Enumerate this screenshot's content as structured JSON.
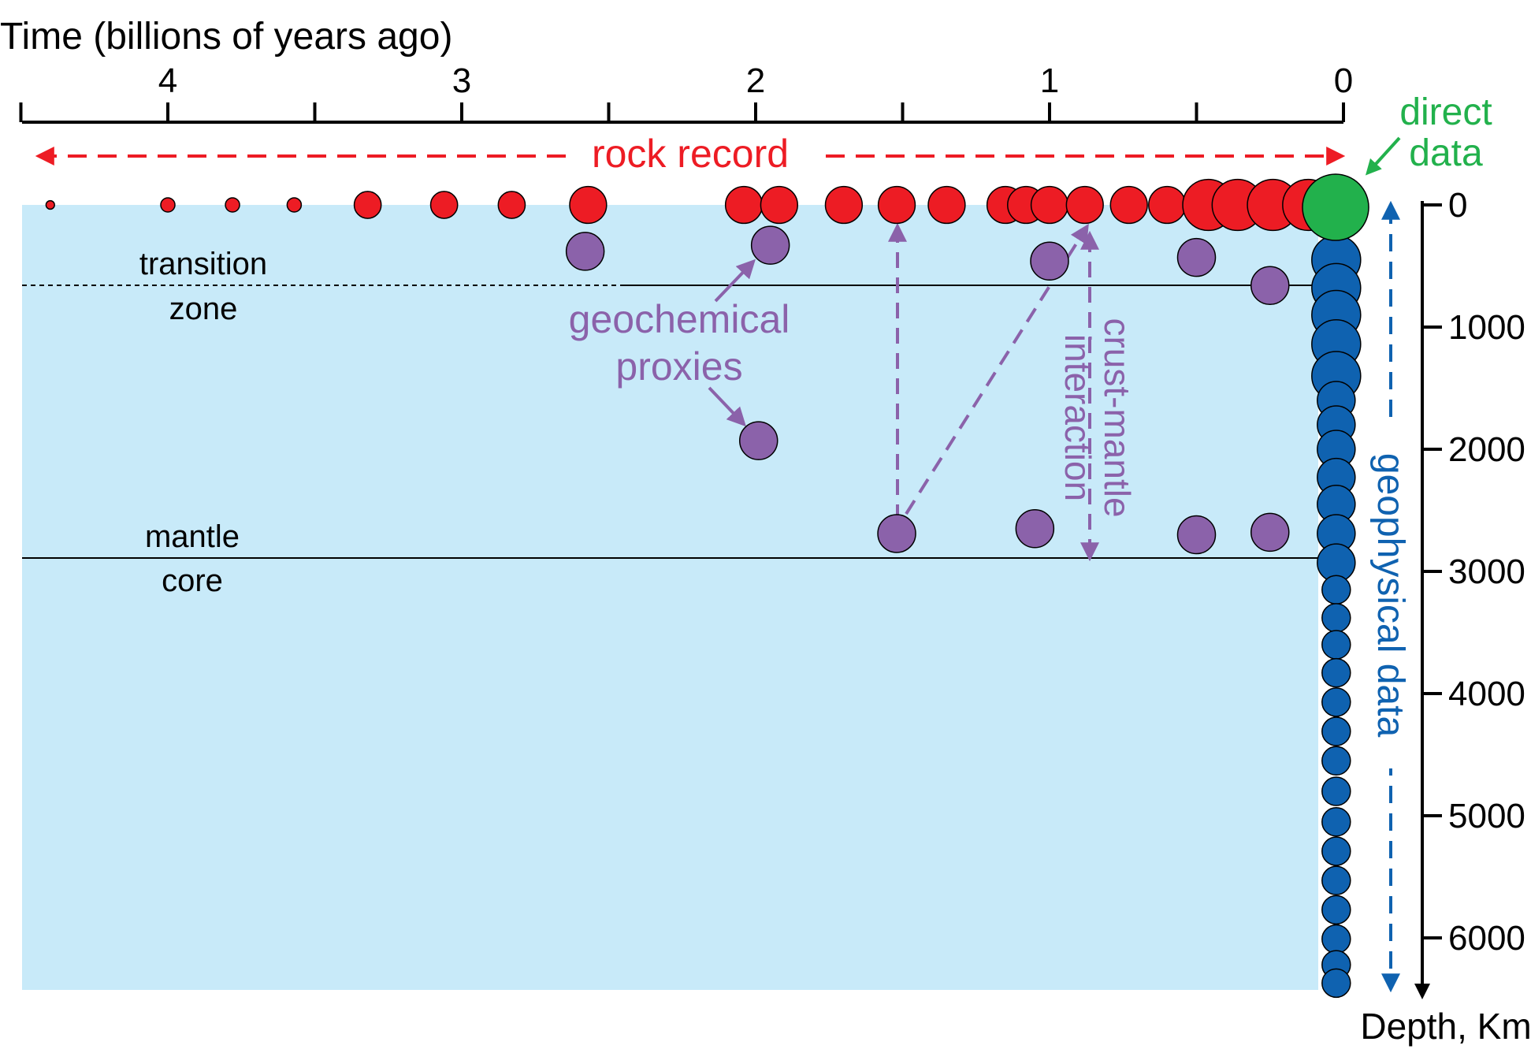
{
  "colors": {
    "rock": "#ed1c24",
    "proxy": "#8b62aa",
    "geophysical": "#0f62b0",
    "direct": "#22b14c",
    "mantle_fill": "#c8eaf9",
    "axis": "#000000"
  },
  "time_axis": {
    "title": "Time (billions of years ago)",
    "unit": "Ga",
    "range": [
      4.5,
      0
    ],
    "ticks": [
      4.5,
      4,
      3.5,
      3,
      2.5,
      2,
      1.5,
      1,
      0.5,
      0
    ],
    "labels": [
      {
        "value": 4,
        "text": "4"
      },
      {
        "value": 3,
        "text": "3"
      },
      {
        "value": 2,
        "text": "2"
      },
      {
        "value": 1,
        "text": "1"
      },
      {
        "value": 0,
        "text": "0"
      }
    ]
  },
  "depth_axis": {
    "title": "Depth, Km",
    "unit": "km",
    "range": [
      0,
      6371
    ],
    "labels": [
      {
        "value": 0,
        "text": "0"
      },
      {
        "value": 1000,
        "text": "1000"
      },
      {
        "value": 2000,
        "text": "2000"
      },
      {
        "value": 3000,
        "text": "3000"
      },
      {
        "value": 4000,
        "text": "4000"
      },
      {
        "value": 5000,
        "text": "5000"
      },
      {
        "value": 6000,
        "text": "6000"
      }
    ]
  },
  "boundaries": {
    "transition_zone_depth_km": 660,
    "transition_label_top": "transition",
    "transition_label_bottom": "zone",
    "cmb_depth_km": 2890,
    "cmb_label_top": "mantle",
    "cmb_label_bottom": "core"
  },
  "labels": {
    "rock_record": "rock record",
    "direct_data_line1": "direct",
    "direct_data_line2": "data",
    "geochemical_line1": "geochemical",
    "geochemical_line2": "proxies",
    "crust_mantle_line1": "crust-mantle",
    "crust_mantle_line2": "interaction",
    "geophysical": "geophysical data"
  },
  "rock_record_circles": [
    {
      "age": 4.4,
      "size": 0.12
    },
    {
      "age": 4.0,
      "size": 0.2
    },
    {
      "age": 3.78,
      "size": 0.2
    },
    {
      "age": 3.57,
      "size": 0.2
    },
    {
      "age": 3.32,
      "size": 0.38
    },
    {
      "age": 3.06,
      "size": 0.38
    },
    {
      "age": 2.83,
      "size": 0.38
    },
    {
      "age": 2.57,
      "size": 0.52
    },
    {
      "age": 2.04,
      "size": 0.52
    },
    {
      "age": 1.92,
      "size": 0.52
    },
    {
      "age": 1.7,
      "size": 0.52
    },
    {
      "age": 1.52,
      "size": 0.52
    },
    {
      "age": 1.35,
      "size": 0.52
    },
    {
      "age": 1.15,
      "size": 0.52
    },
    {
      "age": 1.08,
      "size": 0.52
    },
    {
      "age": 1.0,
      "size": 0.52
    },
    {
      "age": 0.88,
      "size": 0.52
    },
    {
      "age": 0.73,
      "size": 0.52
    },
    {
      "age": 0.6,
      "size": 0.52
    },
    {
      "age": 0.46,
      "size": 0.72
    },
    {
      "age": 0.36,
      "size": 0.72
    },
    {
      "age": 0.24,
      "size": 0.72
    },
    {
      "age": 0.12,
      "size": 0.72
    }
  ],
  "geochemical_proxy_circles": [
    {
      "age": 2.58,
      "depth_km": 380
    },
    {
      "age": 1.95,
      "depth_km": 330
    },
    {
      "age": 1.0,
      "depth_km": 460
    },
    {
      "age": 0.5,
      "depth_km": 430
    },
    {
      "age": 0.25,
      "depth_km": 660
    },
    {
      "age": 1.99,
      "depth_km": 1930
    },
    {
      "age": 1.52,
      "depth_km": 2690
    },
    {
      "age": 1.05,
      "depth_km": 2650
    },
    {
      "age": 0.5,
      "depth_km": 2700
    },
    {
      "age": 0.25,
      "depth_km": 2680
    }
  ],
  "geophysical_circles": {
    "age": 0.03,
    "depths_km": [
      450,
      680,
      900,
      1140,
      1400,
      1600,
      1800,
      2000,
      2230,
      2450,
      2690,
      2930,
      3150,
      3380,
      3600,
      3830,
      4070,
      4310,
      4550,
      4800,
      5050,
      5290,
      5530,
      5770,
      6010,
      6220,
      6370
    ]
  },
  "direct_data_circle": {
    "age": 0.0,
    "depth_km": 0
  }
}
